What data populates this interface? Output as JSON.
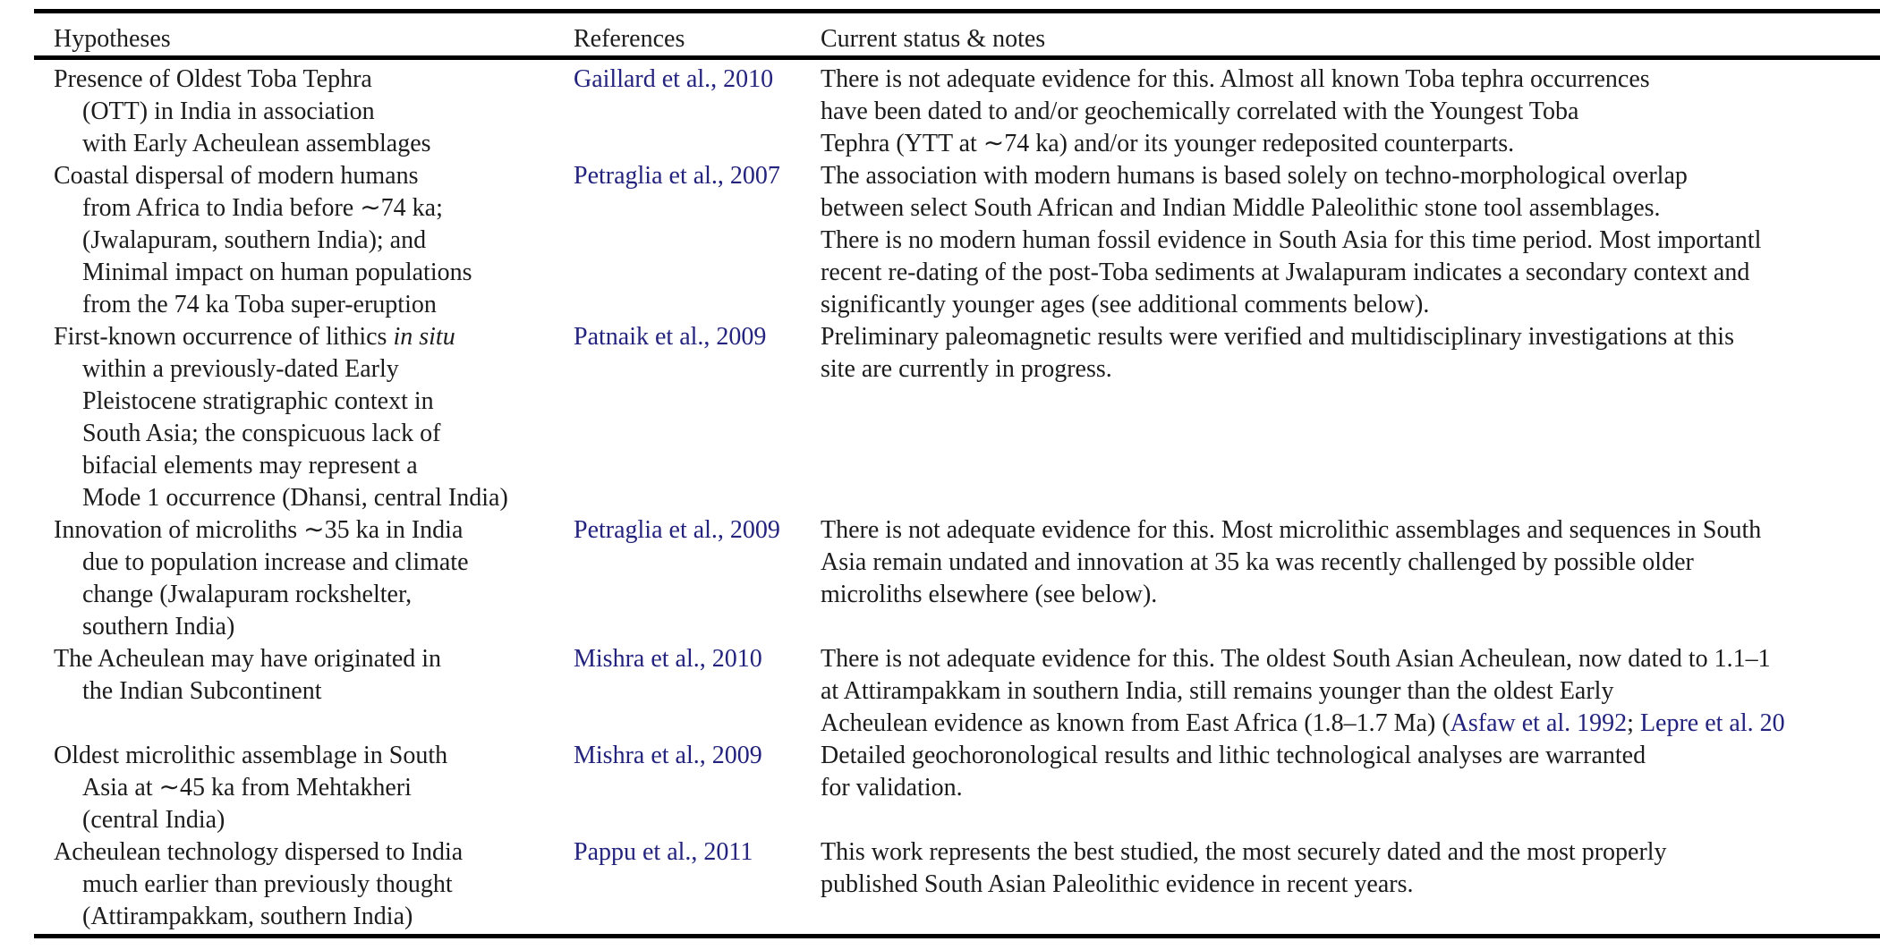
{
  "table": {
    "headers": [
      "Hypotheses",
      "References",
      "Current status & notes"
    ],
    "link_color": "#23237d",
    "text_color": "#1c1c1c",
    "rows": [
      {
        "hypothesis_lines": [
          "Presence of Oldest Toba Tephra",
          "(OTT) in India in association",
          "with Early Acheulean assemblages"
        ],
        "reference": "Gaillard et al., 2010",
        "notes_lines": [
          "There is not adequate evidence for this. Almost all known Toba tephra occurrences",
          "have been dated to and/or geochemically correlated with the Youngest Toba",
          "Tephra (YTT at ∼74 ka) and/or its younger redeposited counterparts."
        ]
      },
      {
        "hypothesis_lines": [
          "Coastal dispersal of modern humans",
          "from Africa to India before ∼74 ka;",
          "(Jwalapuram, southern India); and",
          "Minimal impact on human populations",
          "from the 74 ka Toba super-eruption"
        ],
        "reference": "Petraglia et al., 2007",
        "notes_lines": [
          "The association with modern humans is based solely on techno-morphological overlap",
          "between select South African and Indian Middle Paleolithic stone tool assemblages.",
          "There is no modern human fossil evidence in South Asia for this time period. Most importantl",
          "recent re-dating of the post-Toba sediments at Jwalapuram indicates a secondary context and",
          "significantly younger ages (see additional comments below)."
        ]
      },
      {
        "hypothesis_lines": [
          [
            "First-known occurrence of lithics ",
            {
              "t": "in situ",
              "style": "italic"
            }
          ],
          "within a previously-dated Early",
          "Pleistocene stratigraphic context in",
          "South Asia; the conspicuous lack of",
          "bifacial elements may represent a",
          "Mode 1 occurrence (Dhansi, central India)"
        ],
        "reference": "Patnaik et al., 2009",
        "notes_lines": [
          "Preliminary paleomagnetic results were verified and multidisciplinary investigations at this",
          "site are currently in progress."
        ]
      },
      {
        "hypothesis_lines": [
          "Innovation of microliths ∼35 ka in India",
          "due to population increase and climate",
          "change (Jwalapuram rockshelter,",
          "southern India)"
        ],
        "reference": "Petraglia et al., 2009",
        "notes_lines": [
          "There is not adequate evidence for this. Most microlithic assemblages and sequences in South",
          "Asia remain undated and innovation at 35 ka was recently challenged by possible older",
          "microliths elsewhere (see below)."
        ]
      },
      {
        "hypothesis_lines": [
          "The Acheulean may have originated in",
          "the Indian Subcontinent"
        ],
        "reference": "Mishra et al., 2010",
        "notes_lines": [
          "There is not adequate evidence for this. The oldest South Asian Acheulean, now dated to 1.1–1",
          "at Attirampakkam in southern India, still remains younger than the oldest Early",
          [
            "Acheulean evidence as known from East Africa (1.8–1.7 Ma) (",
            {
              "t": "Asfaw et al. 1992",
              "style": "link"
            },
            "; ",
            {
              "t": "Lepre et al. 20",
              "style": "link"
            }
          ]
        ]
      },
      {
        "hypothesis_lines": [
          "Oldest microlithic assemblage in South",
          "Asia at ∼45 ka from Mehtakheri",
          "(central India)"
        ],
        "reference": "Mishra et al., 2009",
        "notes_lines": [
          "Detailed geochoronological results and lithic technological analyses are warranted",
          "for validation."
        ]
      },
      {
        "hypothesis_lines": [
          "Acheulean technology dispersed to India",
          "much earlier than previously thought",
          "(Attirampakkam, southern India)"
        ],
        "reference": "Pappu et al., 2011",
        "notes_lines": [
          "This work represents the best studied, the most securely dated and the most properly",
          "published South Asian Paleolithic evidence in recent years."
        ]
      }
    ]
  }
}
